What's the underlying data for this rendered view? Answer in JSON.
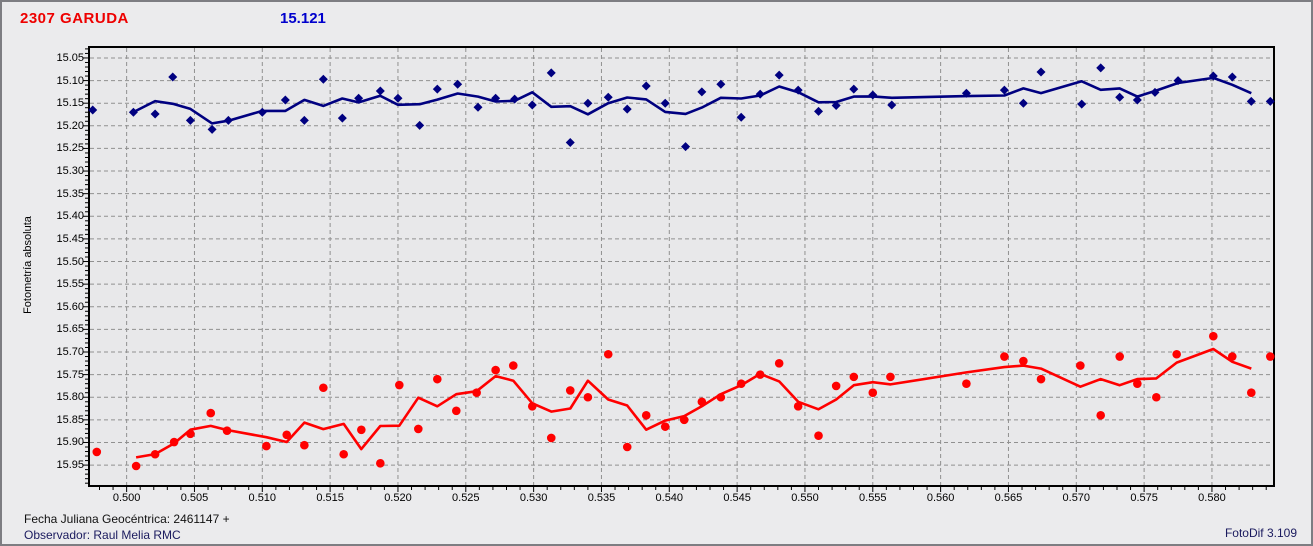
{
  "header": {
    "object_name": "2307 GARUDA",
    "magnitude": "15.121"
  },
  "footer": {
    "julian_date_label": "Fecha Juliana Geocéntrica: 2461147 +",
    "observer_label": "Observador: Raul Melia RMC",
    "software_label": "FotoDif 3.109"
  },
  "colors": {
    "object_title": "#EE0000",
    "magnitude_value": "#0000CD",
    "blue_series": "#000080",
    "red_series": "#FF0000",
    "grid": "#909090",
    "axis_ticks": "#000000",
    "plot_background": "#E8E8EA",
    "window_background": "#EBEBED"
  },
  "chart_data": {
    "type": "scatter",
    "title": "2307 GARUDA",
    "subtitle_value": "15.121",
    "xlabel": "",
    "ylabel": "Fotometría absoluta",
    "grid": "dashed",
    "legend_position": "none",
    "y_axis_note": "magnitude axis, increases downward (inverted)",
    "xlim": [
      0.4973,
      0.5845
    ],
    "ylim": [
      15.028,
      15.994
    ],
    "x_ticks": [
      0.5,
      0.505,
      0.51,
      0.515,
      0.52,
      0.525,
      0.53,
      0.535,
      0.54,
      0.545,
      0.55,
      0.555,
      0.56,
      0.565,
      0.57,
      0.575,
      0.58
    ],
    "y_ticks": [
      15.05,
      15.1,
      15.15,
      15.2,
      15.25,
      15.3,
      15.35,
      15.4,
      15.45,
      15.5,
      15.55,
      15.6,
      15.65,
      15.7,
      15.75,
      15.8,
      15.85,
      15.9,
      15.95
    ],
    "x_minor_step": 0.001,
    "y_minor_step": 0.01,
    "series": [
      {
        "name": "comparison-lightcurve-blue",
        "color": "#000080",
        "marker": "diamond",
        "line": "moving-average-3",
        "line_width": 2.6,
        "points": [
          [
            0.4975,
            15.165
          ],
          [
            0.5005,
            15.17
          ],
          [
            0.5021,
            15.174
          ],
          [
            0.5034,
            15.092
          ],
          [
            0.5047,
            15.188
          ],
          [
            0.5063,
            15.208
          ],
          [
            0.5075,
            15.188
          ],
          [
            0.51,
            15.17
          ],
          [
            0.5117,
            15.143
          ],
          [
            0.5131,
            15.188
          ],
          [
            0.5145,
            15.097
          ],
          [
            0.5159,
            15.183
          ],
          [
            0.5171,
            15.139
          ],
          [
            0.5187,
            15.123
          ],
          [
            0.52,
            15.139
          ],
          [
            0.5216,
            15.199
          ],
          [
            0.5229,
            15.119
          ],
          [
            0.5244,
            15.108
          ],
          [
            0.5259,
            15.159
          ],
          [
            0.5272,
            15.139
          ],
          [
            0.5286,
            15.141
          ],
          [
            0.5299,
            15.154
          ],
          [
            0.5313,
            15.083
          ],
          [
            0.5327,
            15.237
          ],
          [
            0.534,
            15.15
          ],
          [
            0.5355,
            15.137
          ],
          [
            0.5369,
            15.163
          ],
          [
            0.5383,
            15.112
          ],
          [
            0.5397,
            15.15
          ],
          [
            0.5412,
            15.246
          ],
          [
            0.5424,
            15.125
          ],
          [
            0.5438,
            15.108
          ],
          [
            0.5453,
            15.181
          ],
          [
            0.5467,
            15.13
          ],
          [
            0.5481,
            15.088
          ],
          [
            0.5495,
            15.121
          ],
          [
            0.551,
            15.168
          ],
          [
            0.5523,
            15.155
          ],
          [
            0.5536,
            15.119
          ],
          [
            0.555,
            15.132
          ],
          [
            0.5564,
            15.154
          ],
          [
            0.5619,
            15.128
          ],
          [
            0.5647,
            15.121
          ],
          [
            0.5661,
            15.15
          ],
          [
            0.5674,
            15.081
          ],
          [
            0.5704,
            15.152
          ],
          [
            0.5718,
            15.072
          ],
          [
            0.5732,
            15.137
          ],
          [
            0.5745,
            15.143
          ],
          [
            0.5758,
            15.126
          ],
          [
            0.5775,
            15.1
          ],
          [
            0.5801,
            15.09
          ],
          [
            0.5815,
            15.092
          ],
          [
            0.5829,
            15.146
          ],
          [
            0.5843,
            15.146
          ]
        ]
      },
      {
        "name": "target-lightcurve-red",
        "color": "#FF0000",
        "marker": "circle",
        "line": "moving-average-3",
        "line_width": 2.6,
        "points": [
          [
            0.4978,
            15.921
          ],
          [
            0.5007,
            15.952
          ],
          [
            0.5021,
            15.926
          ],
          [
            0.5035,
            15.899
          ],
          [
            0.5047,
            15.881
          ],
          [
            0.5062,
            15.835
          ],
          [
            0.5074,
            15.874
          ],
          [
            0.5103,
            15.908
          ],
          [
            0.5118,
            15.883
          ],
          [
            0.5131,
            15.906
          ],
          [
            0.5145,
            15.779
          ],
          [
            0.516,
            15.926
          ],
          [
            0.5173,
            15.872
          ],
          [
            0.5187,
            15.946
          ],
          [
            0.5201,
            15.773
          ],
          [
            0.5215,
            15.87
          ],
          [
            0.5229,
            15.76
          ],
          [
            0.5243,
            15.83
          ],
          [
            0.5258,
            15.79
          ],
          [
            0.5272,
            15.74
          ],
          [
            0.5285,
            15.73
          ],
          [
            0.5299,
            15.82
          ],
          [
            0.5313,
            15.89
          ],
          [
            0.5327,
            15.785
          ],
          [
            0.534,
            15.8
          ],
          [
            0.5355,
            15.705
          ],
          [
            0.5369,
            15.91
          ],
          [
            0.5383,
            15.84
          ],
          [
            0.5397,
            15.865
          ],
          [
            0.5411,
            15.85
          ],
          [
            0.5424,
            15.81
          ],
          [
            0.5438,
            15.8
          ],
          [
            0.5453,
            15.77
          ],
          [
            0.5467,
            15.75
          ],
          [
            0.5481,
            15.725
          ],
          [
            0.5495,
            15.82
          ],
          [
            0.551,
            15.885
          ],
          [
            0.5523,
            15.775
          ],
          [
            0.5536,
            15.755
          ],
          [
            0.555,
            15.79
          ],
          [
            0.5563,
            15.755
          ],
          [
            0.5619,
            15.77
          ],
          [
            0.5647,
            15.71
          ],
          [
            0.5661,
            15.72
          ],
          [
            0.5674,
            15.76
          ],
          [
            0.5703,
            15.73
          ],
          [
            0.5718,
            15.84
          ],
          [
            0.5732,
            15.71
          ],
          [
            0.5745,
            15.77
          ],
          [
            0.5759,
            15.8
          ],
          [
            0.5774,
            15.705
          ],
          [
            0.5801,
            15.665
          ],
          [
            0.5815,
            15.71
          ],
          [
            0.5829,
            15.79
          ],
          [
            0.5843,
            15.71
          ]
        ]
      }
    ]
  }
}
